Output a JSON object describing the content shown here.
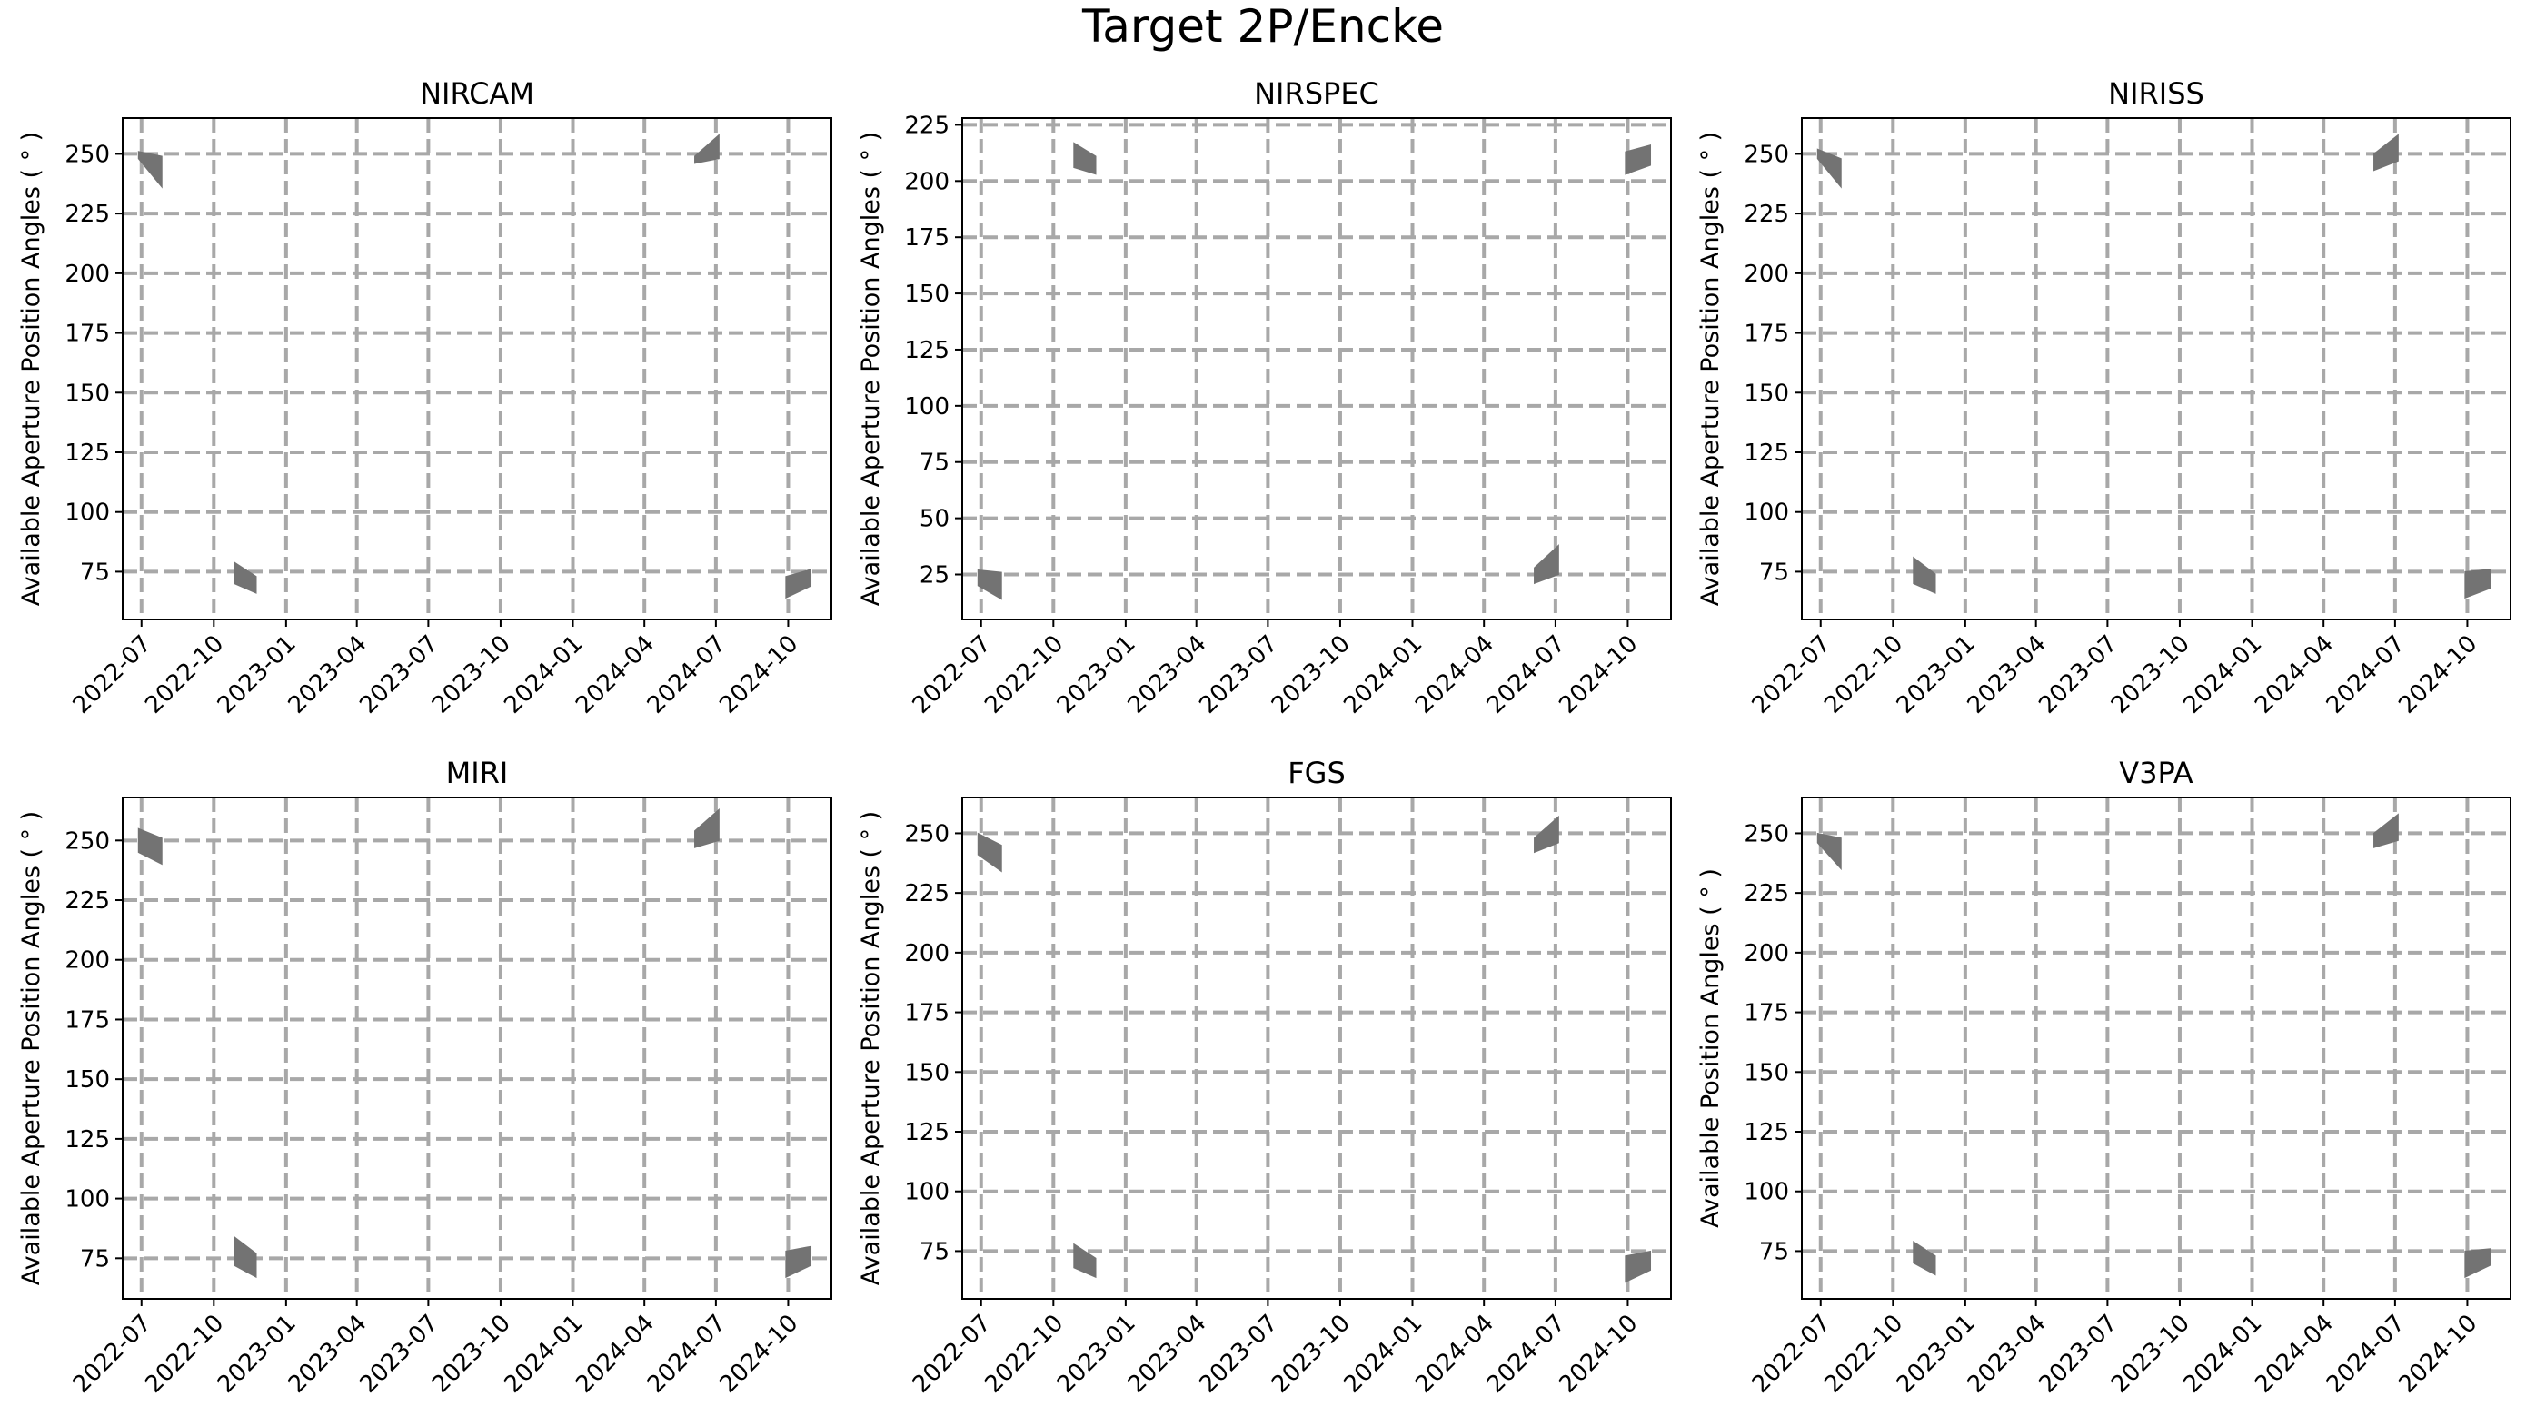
{
  "figure": {
    "title": "Target 2P/Encke",
    "colors": {
      "window_fill": "#737373",
      "grid": "#a8a8a8",
      "axes": "#000000"
    }
  },
  "chart_data": [
    {
      "type": "area",
      "title": "NIRCAM",
      "ylabel": "Available Aperture Position Angles ( ° )",
      "xlabel": "",
      "x_ticks": [
        "2022-07",
        "2022-10",
        "2023-01",
        "2023-04",
        "2023-07",
        "2023-10",
        "2024-01",
        "2024-04",
        "2024-07",
        "2024-10"
      ],
      "xlim": [
        "2022-06-07",
        "2024-11-25"
      ],
      "y_ticks": [
        75,
        100,
        125,
        150,
        175,
        200,
        225,
        250
      ],
      "ylim": [
        55,
        265
      ],
      "grid": true,
      "windows": [
        {
          "x": [
            "2022-06-27",
            "2022-07-27"
          ],
          "lower": [
            248,
            236
          ],
          "upper": [
            251,
            249
          ]
        },
        {
          "x": [
            "2022-10-27",
            "2022-11-24"
          ],
          "lower": [
            70,
            66
          ],
          "upper": [
            79,
            73
          ]
        },
        {
          "x": [
            "2024-06-04",
            "2024-07-05"
          ],
          "lower": [
            246,
            248
          ],
          "upper": [
            249,
            258
          ]
        },
        {
          "x": [
            "2024-09-28",
            "2024-10-30"
          ],
          "lower": [
            64,
            69
          ],
          "upper": [
            73,
            76
          ]
        }
      ]
    },
    {
      "type": "area",
      "title": "NIRSPEC",
      "ylabel": "Available Aperture Position Angles ( ° )",
      "xlabel": "",
      "x_ticks": [
        "2022-07",
        "2022-10",
        "2023-01",
        "2023-04",
        "2023-07",
        "2023-10",
        "2024-01",
        "2024-04",
        "2024-07",
        "2024-10"
      ],
      "xlim": [
        "2022-06-07",
        "2024-11-25"
      ],
      "y_ticks": [
        25,
        50,
        75,
        100,
        125,
        150,
        175,
        200,
        225
      ],
      "ylim": [
        5,
        228
      ],
      "grid": true,
      "windows": [
        {
          "x": [
            "2022-06-27",
            "2022-07-27"
          ],
          "lower": [
            20,
            14
          ],
          "upper": [
            27,
            26
          ]
        },
        {
          "x": [
            "2022-10-27",
            "2022-11-24"
          ],
          "lower": [
            206,
            203
          ],
          "upper": [
            217,
            211
          ]
        },
        {
          "x": [
            "2024-06-04",
            "2024-07-05"
          ],
          "lower": [
            21,
            25
          ],
          "upper": [
            28,
            38
          ]
        },
        {
          "x": [
            "2024-09-28",
            "2024-10-30"
          ],
          "lower": [
            203,
            207
          ],
          "upper": [
            213,
            216
          ]
        }
      ]
    },
    {
      "type": "area",
      "title": "NIRISS",
      "ylabel": "Available Aperture Position Angles ( ° )",
      "xlabel": "",
      "x_ticks": [
        "2022-07",
        "2022-10",
        "2023-01",
        "2023-04",
        "2023-07",
        "2023-10",
        "2024-01",
        "2024-04",
        "2024-07",
        "2024-10"
      ],
      "xlim": [
        "2022-06-07",
        "2024-11-25"
      ],
      "y_ticks": [
        75,
        100,
        125,
        150,
        175,
        200,
        225,
        250
      ],
      "ylim": [
        55,
        265
      ],
      "grid": true,
      "windows": [
        {
          "x": [
            "2022-06-27",
            "2022-07-27"
          ],
          "lower": [
            248,
            236
          ],
          "upper": [
            252,
            248
          ]
        },
        {
          "x": [
            "2022-10-27",
            "2022-11-24"
          ],
          "lower": [
            70,
            66
          ],
          "upper": [
            81,
            74
          ]
        },
        {
          "x": [
            "2024-06-04",
            "2024-07-05"
          ],
          "lower": [
            243,
            247
          ],
          "upper": [
            250,
            258
          ]
        },
        {
          "x": [
            "2024-09-28",
            "2024-10-30"
          ],
          "lower": [
            64,
            68
          ],
          "upper": [
            75,
            76
          ]
        }
      ]
    },
    {
      "type": "area",
      "title": "MIRI",
      "ylabel": "Available Aperture Position Angles ( ° )",
      "xlabel": "",
      "x_ticks": [
        "2022-07",
        "2022-10",
        "2023-01",
        "2023-04",
        "2023-07",
        "2023-10",
        "2024-01",
        "2024-04",
        "2024-07",
        "2024-10"
      ],
      "xlim": [
        "2022-06-07",
        "2024-11-25"
      ],
      "y_ticks": [
        75,
        100,
        125,
        150,
        175,
        200,
        225,
        250
      ],
      "ylim": [
        58,
        268
      ],
      "grid": true,
      "windows": [
        {
          "x": [
            "2022-06-27",
            "2022-07-27"
          ],
          "lower": [
            245,
            240
          ],
          "upper": [
            255,
            251
          ]
        },
        {
          "x": [
            "2022-10-27",
            "2022-11-24"
          ],
          "lower": [
            72,
            67
          ],
          "upper": [
            84,
            77
          ]
        },
        {
          "x": [
            "2024-06-04",
            "2024-07-05"
          ],
          "lower": [
            247,
            250
          ],
          "upper": [
            254,
            263
          ]
        },
        {
          "x": [
            "2024-09-28",
            "2024-10-30"
          ],
          "lower": [
            67,
            72
          ],
          "upper": [
            78,
            80
          ]
        }
      ]
    },
    {
      "type": "area",
      "title": "FGS",
      "ylabel": "Available Aperture Position Angles ( ° )",
      "xlabel": "",
      "x_ticks": [
        "2022-07",
        "2022-10",
        "2023-01",
        "2023-04",
        "2023-07",
        "2023-10",
        "2024-01",
        "2024-04",
        "2024-07",
        "2024-10"
      ],
      "xlim": [
        "2022-06-07",
        "2024-11-25"
      ],
      "y_ticks": [
        75,
        100,
        125,
        150,
        175,
        200,
        225,
        250
      ],
      "ylim": [
        55,
        265
      ],
      "grid": true,
      "windows": [
        {
          "x": [
            "2022-06-27",
            "2022-07-27"
          ],
          "lower": [
            241,
            234
          ],
          "upper": [
            250,
            245
          ]
        },
        {
          "x": [
            "2022-10-27",
            "2022-11-24"
          ],
          "lower": [
            68,
            64
          ],
          "upper": [
            78,
            72
          ]
        },
        {
          "x": [
            "2024-06-04",
            "2024-07-05"
          ],
          "lower": [
            242,
            246
          ],
          "upper": [
            248,
            257
          ]
        },
        {
          "x": [
            "2024-09-28",
            "2024-10-30"
          ],
          "lower": [
            62,
            67
          ],
          "upper": [
            73,
            75
          ]
        }
      ]
    },
    {
      "type": "area",
      "title": "V3PA",
      "ylabel": "Available Position Angles ( ° )",
      "xlabel": "",
      "x_ticks": [
        "2022-07",
        "2022-10",
        "2023-01",
        "2023-04",
        "2023-07",
        "2023-10",
        "2024-01",
        "2024-04",
        "2024-07",
        "2024-10"
      ],
      "xlim": [
        "2022-06-07",
        "2024-11-25"
      ],
      "y_ticks": [
        75,
        100,
        125,
        150,
        175,
        200,
        225,
        250
      ],
      "ylim": [
        55,
        265
      ],
      "grid": true,
      "windows": [
        {
          "x": [
            "2022-06-27",
            "2022-07-27"
          ],
          "lower": [
            246,
            235
          ],
          "upper": [
            250,
            248
          ]
        },
        {
          "x": [
            "2022-10-27",
            "2022-11-24"
          ],
          "lower": [
            70,
            65
          ],
          "upper": [
            79,
            73
          ]
        },
        {
          "x": [
            "2024-06-04",
            "2024-07-05"
          ],
          "lower": [
            244,
            247
          ],
          "upper": [
            250,
            258
          ]
        },
        {
          "x": [
            "2024-09-28",
            "2024-10-30"
          ],
          "lower": [
            64,
            69
          ],
          "upper": [
            75,
            76
          ]
        }
      ]
    }
  ]
}
